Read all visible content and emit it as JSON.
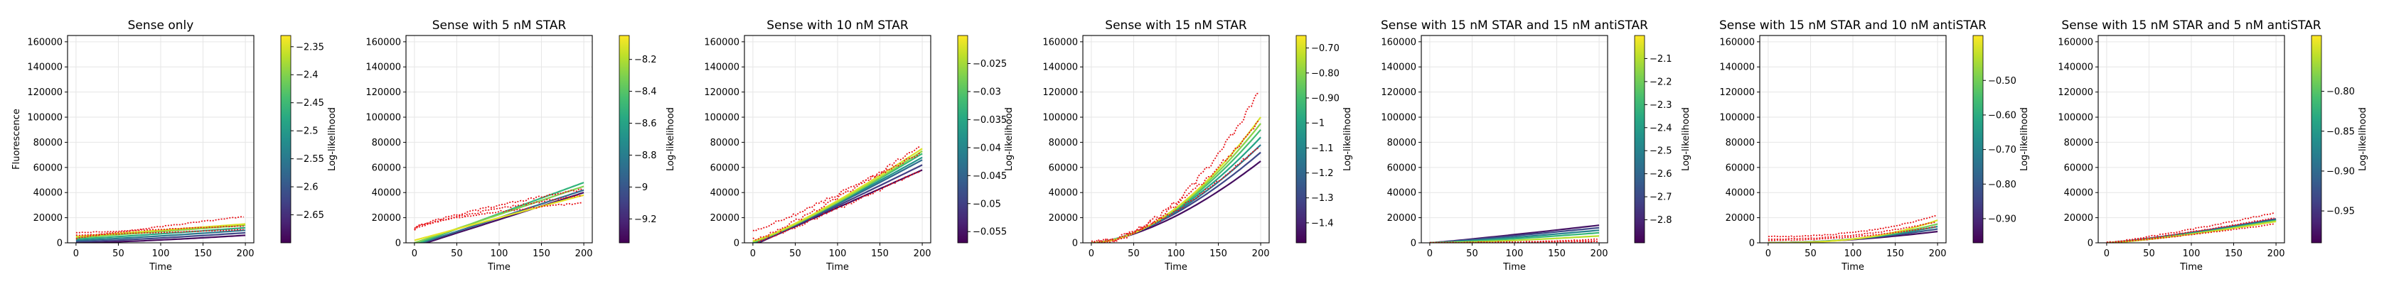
{
  "figure": {
    "background": "#ffffff"
  },
  "chart_data": [
    {
      "type": "line",
      "title": "Sense only",
      "xlabel": "Time",
      "ylabel": "Fluorescence",
      "colorbar_label": "Log-likelihood",
      "xlim": [
        -10,
        210
      ],
      "ylim": [
        0,
        165000
      ],
      "xticks": [
        0,
        50,
        100,
        150,
        200
      ],
      "yticks": [
        0,
        20000,
        40000,
        60000,
        80000,
        100000,
        120000,
        140000,
        160000
      ],
      "colorbar_range": [
        -2.7,
        -2.33
      ],
      "colorbar_ticks": [
        -2.35,
        -2.4,
        -2.45,
        -2.5,
        -2.55,
        -2.6,
        -2.65
      ],
      "colormap": "viridis",
      "grid": true,
      "model_lines": [
        {
          "loglik": -2.69,
          "start": 0,
          "end": 6000,
          "curve": 1.4
        },
        {
          "loglik": -2.62,
          "start": 1000,
          "end": 8000,
          "curve": 1.3
        },
        {
          "loglik": -2.55,
          "start": 2000,
          "end": 10000,
          "curve": 1.2
        },
        {
          "loglik": -2.47,
          "start": 3000,
          "end": 12000,
          "curve": 1.1
        },
        {
          "loglik": -2.4,
          "start": 4000,
          "end": 14000,
          "curve": 1.0
        },
        {
          "loglik": -2.35,
          "start": 5000,
          "end": 15000,
          "curve": 1.0
        }
      ],
      "observed": [
        {
          "start": 3500,
          "end": 21000,
          "curve": 0.9
        },
        {
          "start": 8000,
          "end": 13500,
          "curve": 1.0
        },
        {
          "start": 6000,
          "end": 10500,
          "curve": 1.0
        }
      ]
    },
    {
      "type": "line",
      "title": "Sense with 5 nM STAR",
      "xlabel": "Time",
      "ylabel": "",
      "colorbar_label": "Log-likelihood",
      "xlim": [
        -10,
        210
      ],
      "ylim": [
        0,
        165000
      ],
      "xticks": [
        0,
        50,
        100,
        150,
        200
      ],
      "yticks": [
        0,
        20000,
        40000,
        60000,
        80000,
        100000,
        120000,
        140000,
        160000
      ],
      "colorbar_range": [
        -9.35,
        -8.05
      ],
      "colorbar_ticks": [
        -8.2,
        -8.4,
        -8.6,
        -8.8,
        -9.0,
        -9.2
      ],
      "colormap": "viridis",
      "grid": true,
      "model_lines": [
        {
          "loglik": -9.3,
          "start": -3000,
          "end": 40000,
          "curve": 1.0
        },
        {
          "loglik": -8.9,
          "start": -2000,
          "end": 42000,
          "curve": 1.0
        },
        {
          "loglik": -8.5,
          "start": -1500,
          "end": 48000,
          "curve": 1.0
        },
        {
          "loglik": -8.3,
          "start": 0,
          "end": 45000,
          "curve": 1.0
        },
        {
          "loglik": -8.1,
          "start": 2000,
          "end": 38000,
          "curve": 1.0
        }
      ],
      "observed": [
        {
          "start": 11000,
          "end": 32000,
          "curve": 0.6
        },
        {
          "start": 10000,
          "end": 38000,
          "curve": 0.7
        },
        {
          "start": 12000,
          "end": 43000,
          "curve": 0.8
        }
      ]
    },
    {
      "type": "line",
      "title": "Sense with 10 nM STAR",
      "xlabel": "Time",
      "ylabel": "",
      "colorbar_label": "Log-likelihood",
      "xlim": [
        -10,
        210
      ],
      "ylim": [
        0,
        165000
      ],
      "xticks": [
        0,
        50,
        100,
        150,
        200
      ],
      "yticks": [
        0,
        20000,
        40000,
        60000,
        80000,
        100000,
        120000,
        140000,
        160000
      ],
      "colorbar_range": [
        -0.057,
        -0.02
      ],
      "colorbar_ticks": [
        -0.025,
        -0.03,
        -0.035,
        -0.04,
        -0.045,
        -0.05,
        -0.055
      ],
      "colormap": "viridis",
      "grid": true,
      "model_lines": [
        {
          "loglik": -0.056,
          "start": -2000,
          "end": 58000,
          "curve": 1.0
        },
        {
          "loglik": -0.05,
          "start": -1000,
          "end": 62000,
          "curve": 1.05
        },
        {
          "loglik": -0.044,
          "start": 0,
          "end": 66000,
          "curve": 1.1
        },
        {
          "loglik": -0.038,
          "start": 0,
          "end": 68000,
          "curve": 1.1
        },
        {
          "loglik": -0.032,
          "start": 500,
          "end": 71000,
          "curve": 1.15
        },
        {
          "loglik": -0.026,
          "start": 1000,
          "end": 73000,
          "curve": 1.2
        },
        {
          "loglik": -0.022,
          "start": 1500,
          "end": 75000,
          "curve": 1.2
        }
      ],
      "observed": [
        {
          "start": 9000,
          "end": 72000,
          "curve": 1.1
        },
        {
          "start": 3000,
          "end": 78000,
          "curve": 1.2
        },
        {
          "start": 0,
          "end": 58000,
          "curve": 1.1
        }
      ]
    },
    {
      "type": "line",
      "title": "Sense with 15 nM STAR",
      "xlabel": "Time",
      "ylabel": "",
      "colorbar_label": "Log-likelihood",
      "xlim": [
        -10,
        210
      ],
      "ylim": [
        0,
        165000
      ],
      "xticks": [
        0,
        50,
        100,
        150,
        200
      ],
      "yticks": [
        0,
        20000,
        40000,
        60000,
        80000,
        100000,
        120000,
        140000,
        160000
      ],
      "colorbar_range": [
        -1.48,
        -0.65
      ],
      "colorbar_ticks": [
        -0.7,
        -0.8,
        -0.9,
        -1.0,
        -1.1,
        -1.2,
        -1.3,
        -1.4
      ],
      "colormap": "viridis",
      "grid": true,
      "model_lines": [
        {
          "loglik": -1.45,
          "start": 0,
          "end": 65000,
          "curve": 1.6
        },
        {
          "loglik": -1.3,
          "start": 0,
          "end": 72000,
          "curve": 1.6
        },
        {
          "loglik": -1.15,
          "start": 0,
          "end": 78000,
          "curve": 1.65
        },
        {
          "loglik": -1.0,
          "start": 0,
          "end": 84000,
          "curve": 1.7
        },
        {
          "loglik": -0.9,
          "start": 0,
          "end": 90000,
          "curve": 1.75
        },
        {
          "loglik": -0.8,
          "start": 0,
          "end": 95000,
          "curve": 1.8
        },
        {
          "loglik": -0.7,
          "start": 0,
          "end": 100000,
          "curve": 1.85
        }
      ],
      "observed": [
        {
          "start": 0,
          "end": 122000,
          "curve": 1.9
        },
        {
          "start": 0,
          "end": 98000,
          "curve": 1.7
        },
        {
          "start": 0,
          "end": 78000,
          "curve": 1.6
        }
      ]
    },
    {
      "type": "line",
      "title": "Sense with 15 nM STAR and 15 nM antiSTAR",
      "xlabel": "Time",
      "ylabel": "",
      "colorbar_label": "Log-likelihood",
      "xlim": [
        -10,
        210
      ],
      "ylim": [
        0,
        165000
      ],
      "xticks": [
        0,
        50,
        100,
        150,
        200
      ],
      "yticks": [
        0,
        20000,
        40000,
        60000,
        80000,
        100000,
        120000,
        140000,
        160000
      ],
      "colorbar_range": [
        -2.9,
        -2.0
      ],
      "colorbar_ticks": [
        -2.1,
        -2.2,
        -2.3,
        -2.4,
        -2.5,
        -2.6,
        -2.7,
        -2.8
      ],
      "colormap": "viridis",
      "grid": true,
      "model_lines": [
        {
          "loglik": -2.85,
          "start": 0,
          "end": 14000,
          "curve": 1.1
        },
        {
          "loglik": -2.7,
          "start": 0,
          "end": 12000,
          "curve": 1.1
        },
        {
          "loglik": -2.5,
          "start": 0,
          "end": 10000,
          "curve": 1.2
        },
        {
          "loglik": -2.3,
          "start": 0,
          "end": 8000,
          "curve": 1.3
        },
        {
          "loglik": -2.1,
          "start": 0,
          "end": 5500,
          "curve": 1.5
        }
      ],
      "observed": [
        {
          "start": 0,
          "end": 1500,
          "curve": 1.0
        },
        {
          "start": 0,
          "end": 3000,
          "curve": 2.5
        },
        {
          "start": 0,
          "end": 1000,
          "curve": 1.0
        }
      ]
    },
    {
      "type": "line",
      "title": "Sense with 15 nM STAR and 10 nM antiSTAR",
      "xlabel": "Time",
      "ylabel": "",
      "colorbar_label": "Log-likelihood",
      "xlim": [
        -10,
        210
      ],
      "ylim": [
        0,
        165000
      ],
      "xticks": [
        0,
        50,
        100,
        150,
        200
      ],
      "yticks": [
        0,
        20000,
        40000,
        60000,
        80000,
        100000,
        120000,
        140000,
        160000
      ],
      "colorbar_range": [
        -0.97,
        -0.37
      ],
      "colorbar_ticks": [
        -0.5,
        -0.6,
        -0.7,
        -0.8,
        -0.9
      ],
      "colormap": "viridis",
      "grid": true,
      "model_lines": [
        {
          "loglik": -0.95,
          "start": 0,
          "end": 9000,
          "curve": 1.8
        },
        {
          "loglik": -0.8,
          "start": 0,
          "end": 11000,
          "curve": 1.9
        },
        {
          "loglik": -0.65,
          "start": 0,
          "end": 13000,
          "curve": 2.1
        },
        {
          "loglik": -0.5,
          "start": 0,
          "end": 15000,
          "curve": 2.3
        },
        {
          "loglik": -0.4,
          "start": 0,
          "end": 18000,
          "curve": 2.6
        }
      ],
      "observed": [
        {
          "start": 5000,
          "end": 22000,
          "curve": 2.4
        },
        {
          "start": 3000,
          "end": 17000,
          "curve": 2.2
        },
        {
          "start": 2000,
          "end": 13000,
          "curve": 2.0
        }
      ]
    },
    {
      "type": "line",
      "title": "Sense with 15 nM STAR and 5 nM antiSTAR",
      "xlabel": "Time",
      "ylabel": "",
      "colorbar_label": "Log-likelihood",
      "xlim": [
        -10,
        210
      ],
      "ylim": [
        0,
        165000
      ],
      "xticks": [
        0,
        50,
        100,
        150,
        200
      ],
      "yticks": [
        0,
        20000,
        40000,
        60000,
        80000,
        100000,
        120000,
        140000,
        160000
      ],
      "colorbar_range": [
        -0.99,
        -0.73
      ],
      "colorbar_ticks": [
        -0.8,
        -0.85,
        -0.9,
        -0.95
      ],
      "colormap": "viridis",
      "grid": true,
      "model_lines": [
        {
          "loglik": -0.97,
          "start": 0,
          "end": 19000,
          "curve": 1.2
        },
        {
          "loglik": -0.9,
          "start": 0,
          "end": 18500,
          "curve": 1.2
        },
        {
          "loglik": -0.85,
          "start": 0,
          "end": 18000,
          "curve": 1.25
        },
        {
          "loglik": -0.8,
          "start": 0,
          "end": 17500,
          "curve": 1.3
        },
        {
          "loglik": -0.75,
          "start": 0,
          "end": 17000,
          "curve": 1.3
        }
      ],
      "observed": [
        {
          "start": 500,
          "end": 24000,
          "curve": 1.2
        },
        {
          "start": 0,
          "end": 20000,
          "curve": 1.2
        },
        {
          "start": 0,
          "end": 15000,
          "curve": 1.2
        }
      ]
    }
  ]
}
